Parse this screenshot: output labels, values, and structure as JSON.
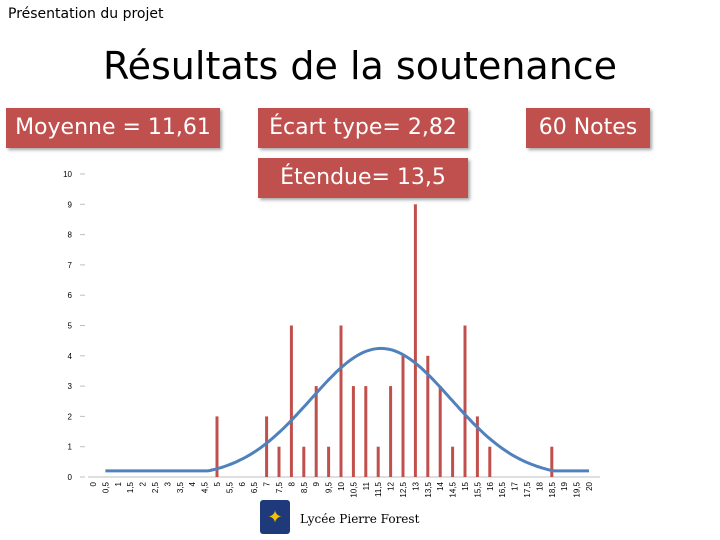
{
  "header": {
    "small_title": "Présentation du projet",
    "main_title": "Résultats de la soutenance"
  },
  "stats": {
    "mean": "Moyenne = 11,61",
    "sd": "Écart type= 2,82",
    "count": "60 Notes",
    "range": "Étendue= 13,5"
  },
  "footer": {
    "school": "Lycée Pierre Forest"
  },
  "colors": {
    "bars": "#c0504d",
    "curve": "#4f81bd",
    "box": "#c0504d"
  },
  "chart_data": {
    "type": "bar",
    "categories": [
      "0",
      "0,5",
      "1",
      "1,5",
      "2",
      "2,5",
      "3",
      "3,5",
      "4",
      "4,5",
      "5",
      "5,5",
      "6",
      "6,5",
      "7",
      "7,5",
      "8",
      "8,5",
      "9",
      "9,5",
      "10",
      "10,5",
      "11",
      "11,5",
      "12",
      "12,5",
      "13",
      "13,5",
      "14",
      "14,5",
      "15",
      "15,5",
      "16",
      "16,5",
      "17",
      "17,5",
      "18",
      "18,5",
      "19",
      "19,5",
      "20"
    ],
    "values": [
      0,
      0,
      0,
      0,
      0,
      0,
      0,
      0,
      0,
      0,
      2,
      0,
      0,
      0,
      2,
      1,
      5,
      1,
      3,
      1,
      5,
      3,
      3,
      1,
      3,
      4,
      9,
      4,
      3,
      1,
      5,
      2,
      1,
      0,
      0,
      0,
      0,
      1,
      0,
      0,
      0
    ],
    "curve": {
      "type": "normal",
      "mean": 11.61,
      "sd": 2.82,
      "count": 60
    },
    "ylim": [
      0,
      10
    ],
    "yticks": [
      "0",
      "1",
      "2",
      "3",
      "4",
      "5",
      "6",
      "7",
      "8",
      "9",
      "10"
    ],
    "grid": false,
    "legend": "none"
  }
}
